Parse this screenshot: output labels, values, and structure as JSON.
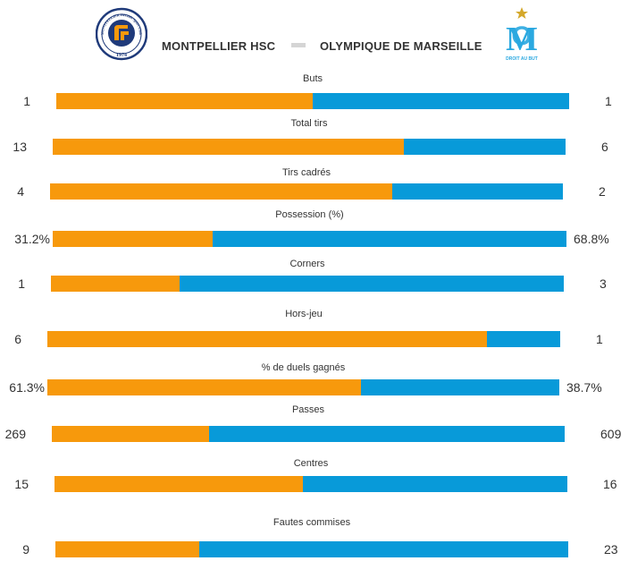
{
  "home": {
    "name": "MONTPELLIER HSC",
    "crest_text_top": "MONTPELLIER Hérault Sport Club",
    "crest_year": "1974",
    "color": "#f7990c"
  },
  "away": {
    "name": "OLYMPIQUE DE MARSEILLE",
    "crest_motto": "DROIT AU BUT",
    "color": "#089ad9"
  },
  "chart_data": {
    "type": "bar",
    "orientation": "horizontal-stacked",
    "categories": [
      "Buts",
      "Total tirs",
      "Tirs cadrés",
      "Possession (%)",
      "Corners",
      "Hors-jeu",
      "% de duels gagnés",
      "Passes",
      "Centres",
      "Fautes commises"
    ],
    "series": [
      {
        "name": "MONTPELLIER HSC",
        "values": [
          1,
          13,
          4,
          31.2,
          1,
          6,
          61.3,
          269,
          15,
          9
        ]
      },
      {
        "name": "OLYMPIQUE DE MARSEILLE",
        "values": [
          1,
          6,
          2,
          68.8,
          3,
          1,
          38.7,
          609,
          16,
          23
        ]
      }
    ],
    "value_labels": {
      "home": [
        "1",
        "13",
        "4",
        "31.2%",
        "1",
        "6",
        "61.3%",
        "269",
        "15",
        "9"
      ],
      "away": [
        "1",
        "6",
        "2",
        "68.8%",
        "3",
        "1",
        "38.7%",
        "609",
        "16",
        "23"
      ]
    },
    "legend": "none",
    "grid": false
  }
}
